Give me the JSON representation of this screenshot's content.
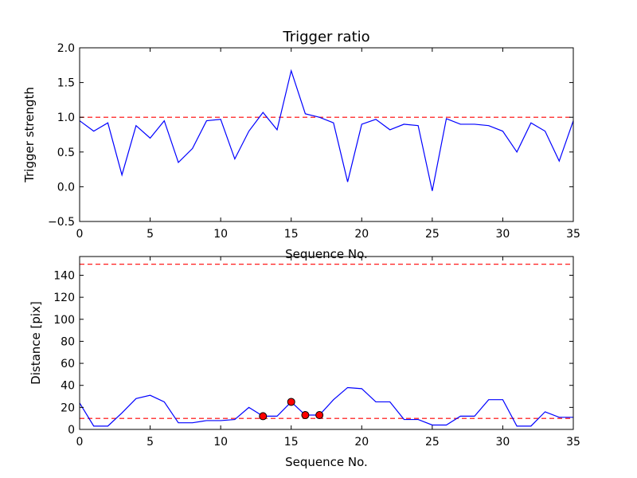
{
  "chart_data": [
    {
      "type": "line",
      "title": "Trigger ratio",
      "xlabel": "Sequence No.",
      "ylabel": "Trigger strength",
      "xlim": [
        0,
        35
      ],
      "ylim": [
        -0.5,
        2.0
      ],
      "xticks": [
        0,
        5,
        10,
        15,
        20,
        25,
        30,
        35
      ],
      "yticks": [
        -0.5,
        0.0,
        0.5,
        1.0,
        1.5,
        2.0
      ],
      "ytick_labels": [
        "−0.5",
        "0.0",
        "0.5",
        "1.0",
        "1.5",
        "2.0"
      ],
      "grid": false,
      "series": [
        {
          "color": "#0000ff",
          "x": [
            0,
            1,
            2,
            3,
            4,
            5,
            6,
            7,
            8,
            9,
            10,
            11,
            12,
            13,
            14,
            15,
            16,
            17,
            18,
            19,
            20,
            21,
            22,
            23,
            24,
            25,
            26,
            27,
            28,
            29,
            30,
            31,
            32,
            33,
            34,
            35
          ],
          "values": [
            0.95,
            0.8,
            0.92,
            0.17,
            0.88,
            0.7,
            0.95,
            0.35,
            0.55,
            0.95,
            0.97,
            0.4,
            0.8,
            1.07,
            0.82,
            1.67,
            1.05,
            1.0,
            0.92,
            0.07,
            0.9,
            0.97,
            0.82,
            0.9,
            0.88,
            -0.06,
            0.98,
            0.9,
            0.9,
            0.88,
            0.8,
            0.5,
            0.92,
            0.8,
            0.37,
            0.95
          ]
        }
      ],
      "reference_lines": [
        {
          "y": 1.0,
          "color": "#ff0000",
          "style": "dashed"
        }
      ]
    },
    {
      "type": "line",
      "title": "",
      "xlabel": "Sequence No.",
      "ylabel": "Distance [pix]",
      "xlim": [
        0,
        35
      ],
      "ylim": [
        0,
        157
      ],
      "xticks": [
        0,
        5,
        10,
        15,
        20,
        25,
        30,
        35
      ],
      "yticks": [
        0,
        20,
        40,
        60,
        80,
        100,
        120,
        140
      ],
      "ytick_labels": [
        "0",
        "20",
        "40",
        "60",
        "80",
        "100",
        "120",
        "140"
      ],
      "grid": false,
      "series": [
        {
          "color": "#0000ff",
          "x": [
            0,
            1,
            2,
            3,
            4,
            5,
            6,
            7,
            8,
            9,
            10,
            11,
            12,
            13,
            14,
            15,
            16,
            17,
            18,
            19,
            20,
            21,
            22,
            23,
            24,
            25,
            26,
            27,
            28,
            29,
            30,
            31,
            32,
            33,
            34,
            35
          ],
          "values": [
            24,
            3,
            3,
            15,
            28,
            31,
            25,
            6,
            6,
            8,
            8,
            9,
            20,
            12,
            12,
            25,
            13,
            13,
            27,
            38,
            37,
            25,
            25,
            9,
            9,
            4,
            4,
            12,
            12,
            27,
            27,
            3,
            3,
            16,
            11,
            11
          ]
        }
      ],
      "markers": {
        "color": "#ff0000",
        "x": [
          13,
          15,
          16,
          17
        ],
        "values": [
          12,
          25,
          13,
          13
        ]
      },
      "reference_lines": [
        {
          "y": 150,
          "color": "#ff0000",
          "style": "dashed"
        },
        {
          "y": 10,
          "color": "#ff0000",
          "style": "dashed"
        }
      ]
    }
  ]
}
